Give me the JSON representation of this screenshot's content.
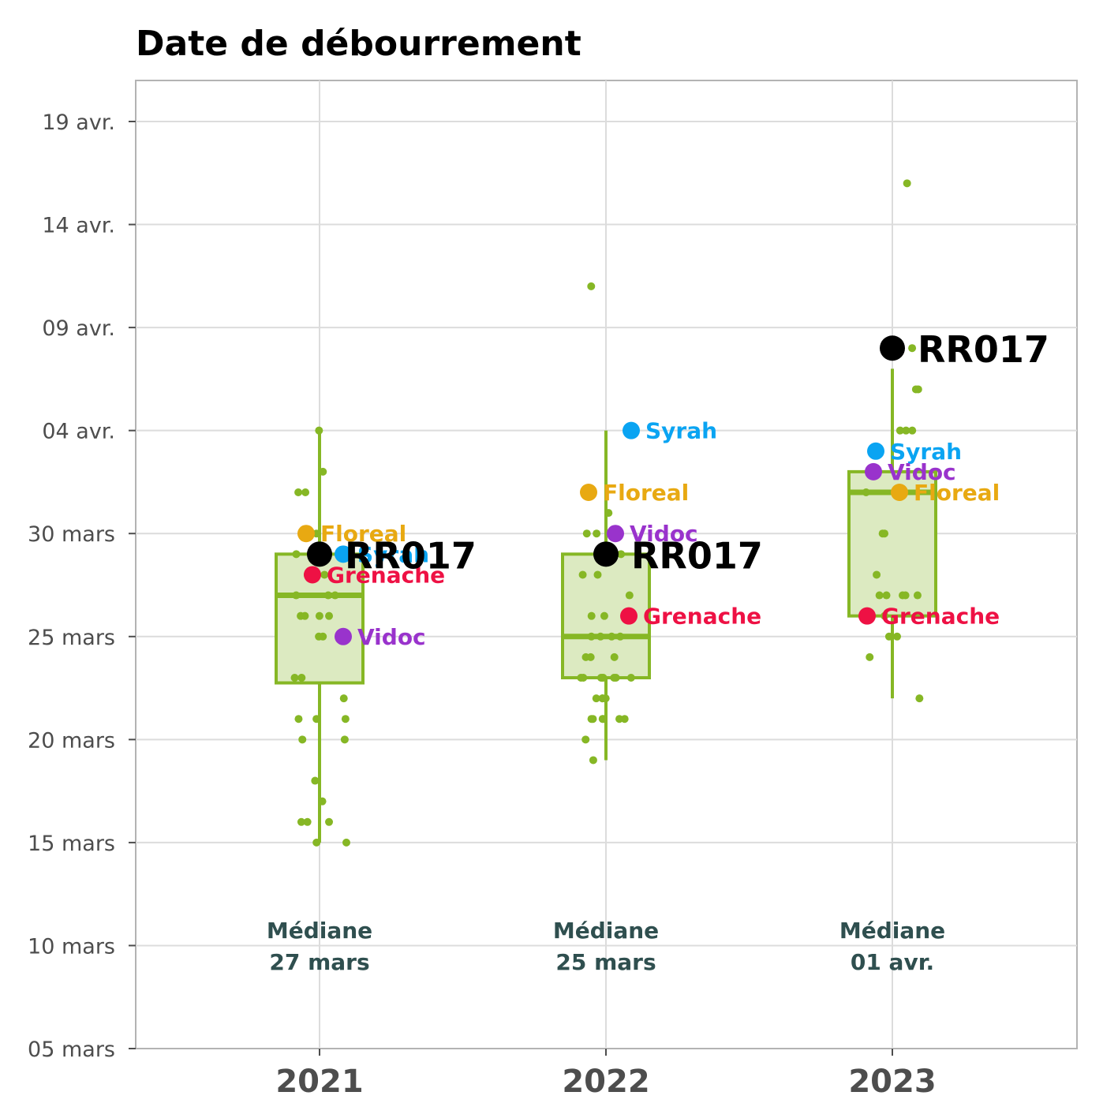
{
  "chart_data": {
    "type": "boxplot",
    "title": "Date de débourrement",
    "xlabel": "",
    "ylabel": "",
    "categories": [
      "2021",
      "2022",
      "2023"
    ],
    "ylim": [
      "2024-03-05",
      "2024-04-23"
    ],
    "y_ticks": [
      {
        "date": "2024-03-05",
        "label": "05 mars"
      },
      {
        "date": "2024-03-10",
        "label": "10 mars"
      },
      {
        "date": "2024-03-15",
        "label": "15 mars"
      },
      {
        "date": "2024-03-20",
        "label": "20 mars"
      },
      {
        "date": "2024-03-25",
        "label": "25 mars"
      },
      {
        "date": "2024-03-30",
        "label": "30 mars"
      },
      {
        "date": "2024-04-04",
        "label": "04 avr."
      },
      {
        "date": "2024-04-09",
        "label": "09 avr."
      },
      {
        "date": "2024-04-14",
        "label": "14 avr."
      },
      {
        "date": "2024-04-19",
        "label": "19 avr."
      }
    ],
    "grid": true,
    "colors": {
      "box": "#86b725",
      "box_fill": "#dceac1",
      "points": "#86b725",
      "reference": "#000000",
      "Syrah": "#0aa4f2",
      "Floreal": "#e8a912",
      "Vidoc": "#9933cc",
      "Grenache": "#ee1144"
    },
    "boxes": [
      {
        "category": "2021",
        "whisker_low": "2024-03-15",
        "q1": "2024-03-22.75",
        "median": "2024-03-27",
        "q3": "2024-03-29",
        "whisker_high": "2024-04-04",
        "median_text": {
          "line1": "Médiane",
          "line2": "27 mars"
        }
      },
      {
        "category": "2022",
        "whisker_low": "2024-03-19",
        "q1": "2024-03-23",
        "median": "2024-03-25",
        "q3": "2024-03-29",
        "whisker_high": "2024-04-04",
        "median_text": {
          "line1": "Médiane",
          "line2": "25 mars"
        }
      },
      {
        "category": "2023",
        "whisker_low": "2024-03-22",
        "q1": "2024-03-26",
        "median": "2024-04-01",
        "q3": "2024-04-02",
        "whisker_high": "2024-04-07",
        "median_text": {
          "line1": "Médiane",
          "line2": "01 avr."
        }
      }
    ],
    "points": [
      {
        "category": "2021",
        "dates": [
          "2024-04-04",
          "2024-04-02",
          "2024-04-01",
          "2024-04-01",
          "2024-03-30",
          "2024-03-29",
          "2024-03-29",
          "2024-03-29",
          "2024-03-28",
          "2024-03-28",
          "2024-03-28",
          "2024-03-27",
          "2024-03-27",
          "2024-03-27",
          "2024-03-26",
          "2024-03-26",
          "2024-03-26",
          "2024-03-26",
          "2024-03-25",
          "2024-03-25",
          "2024-03-23",
          "2024-03-23",
          "2024-03-22",
          "2024-03-21",
          "2024-03-21",
          "2024-03-21",
          "2024-03-20",
          "2024-03-20",
          "2024-03-18",
          "2024-03-17",
          "2024-03-16",
          "2024-03-16",
          "2024-03-16",
          "2024-03-15",
          "2024-03-15"
        ]
      },
      {
        "category": "2022",
        "dates": [
          "2024-04-11",
          "2024-03-31",
          "2024-03-30",
          "2024-03-30",
          "2024-03-29",
          "2024-03-29",
          "2024-03-28",
          "2024-03-28",
          "2024-03-27",
          "2024-03-26",
          "2024-03-26",
          "2024-03-26",
          "2024-03-25",
          "2024-03-25",
          "2024-03-25",
          "2024-03-25",
          "2024-03-24",
          "2024-03-24",
          "2024-03-24",
          "2024-03-23",
          "2024-03-23",
          "2024-03-23",
          "2024-03-23",
          "2024-03-23",
          "2024-03-23",
          "2024-03-23",
          "2024-03-22",
          "2024-03-22",
          "2024-03-22",
          "2024-03-22",
          "2024-03-21",
          "2024-03-21",
          "2024-03-21",
          "2024-03-21",
          "2024-03-21",
          "2024-03-21",
          "2024-03-20",
          "2024-03-19"
        ]
      },
      {
        "category": "2023",
        "dates": [
          "2024-04-16",
          "2024-04-08",
          "2024-04-06",
          "2024-04-06",
          "2024-04-04",
          "2024-04-04",
          "2024-04-04",
          "2024-04-01",
          "2024-04-01",
          "2024-03-30",
          "2024-03-30",
          "2024-03-28",
          "2024-03-27",
          "2024-03-27",
          "2024-03-27",
          "2024-03-27",
          "2024-03-27",
          "2024-03-26",
          "2024-03-26",
          "2024-03-25",
          "2024-03-25",
          "2024-03-24",
          "2024-03-22"
        ]
      }
    ],
    "reference": {
      "name": "RR017",
      "values": [
        {
          "category": "2021",
          "date": "2024-03-29"
        },
        {
          "category": "2022",
          "date": "2024-03-29"
        },
        {
          "category": "2023",
          "date": "2024-04-08"
        }
      ]
    },
    "annotations": [
      {
        "name": "Floreal",
        "category": "2021",
        "date": "2024-03-30"
      },
      {
        "name": "Syrah",
        "category": "2021",
        "date": "2024-03-29"
      },
      {
        "name": "Grenache",
        "category": "2021",
        "date": "2024-03-28"
      },
      {
        "name": "Vidoc",
        "category": "2021",
        "date": "2024-03-25"
      },
      {
        "name": "Syrah",
        "category": "2022",
        "date": "2024-04-04"
      },
      {
        "name": "Floreal",
        "category": "2022",
        "date": "2024-04-01"
      },
      {
        "name": "Vidoc",
        "category": "2022",
        "date": "2024-03-30"
      },
      {
        "name": "Grenache",
        "category": "2022",
        "date": "2024-03-26"
      },
      {
        "name": "Syrah",
        "category": "2023",
        "date": "2024-04-03"
      },
      {
        "name": "Vidoc",
        "category": "2023",
        "date": "2024-04-02"
      },
      {
        "name": "Floreal",
        "category": "2023",
        "date": "2024-04-01"
      },
      {
        "name": "Grenache",
        "category": "2023",
        "date": "2024-03-26"
      }
    ]
  }
}
